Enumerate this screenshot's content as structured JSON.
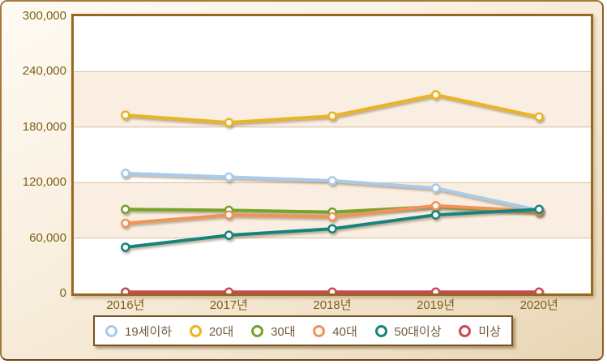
{
  "chart_data": {
    "type": "line",
    "title": "",
    "xlabel": "",
    "ylabel": "",
    "x_categories": [
      "2016년",
      "2017년",
      "2018년",
      "2019년",
      "2020년"
    ],
    "y_tick_labels": [
      "300,000",
      "240,000",
      "180,000",
      "120,000",
      "60,000",
      "0"
    ],
    "ylim": [
      0,
      300000
    ],
    "y_tick_step": 60000,
    "grid": true,
    "legend_position": "bottom",
    "series": [
      {
        "name": "19세이하",
        "color": "#A9CBEA",
        "values": [
          130000,
          126000,
          122000,
          114000,
          90000
        ]
      },
      {
        "name": "20대",
        "color": "#EBB421",
        "values": [
          193000,
          185000,
          192000,
          215000,
          191000
        ]
      },
      {
        "name": "30대",
        "color": "#76A32C",
        "values": [
          91000,
          90000,
          88000,
          94000,
          88000
        ]
      },
      {
        "name": "40대",
        "color": "#F0935A",
        "values": [
          76000,
          85000,
          83000,
          95000,
          89000
        ]
      },
      {
        "name": "50대이상",
        "color": "#17837D",
        "values": [
          50000,
          63000,
          70000,
          85000,
          91000
        ]
      },
      {
        "name": "미상",
        "color": "#C74A52",
        "values": [
          1500,
          1500,
          1500,
          1500,
          1500
        ]
      }
    ]
  },
  "style_colors": {
    "band_light": "#FFFFFF",
    "band_peach": "#FAEEE2",
    "gridline": "#D6BD9C",
    "plot_border": "#9A671E",
    "axis_text": "#7D5E15",
    "legend_text": "#6F5C3E",
    "legend_border": "#7A521E",
    "background_top": "#FEFBF4",
    "background_bottom": "#E8D5B4"
  }
}
